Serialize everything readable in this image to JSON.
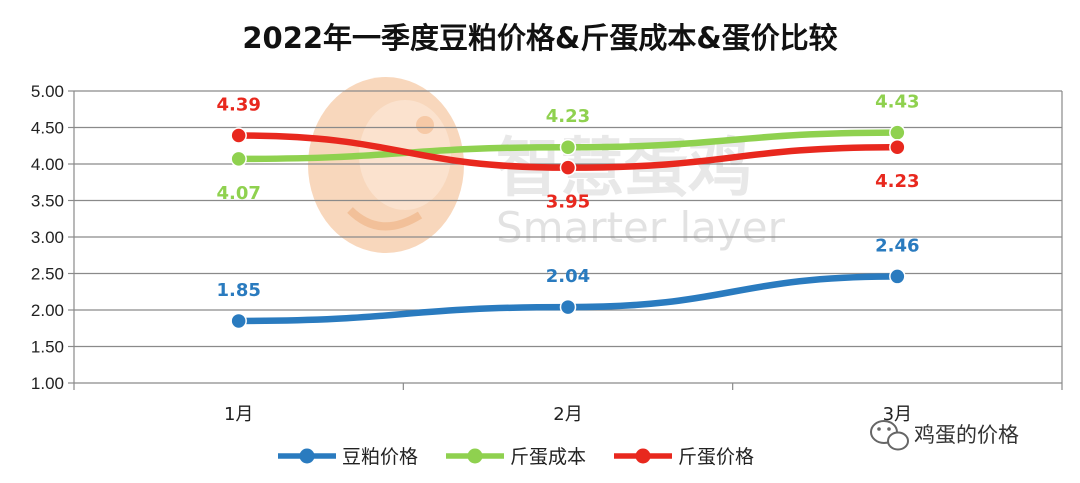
{
  "chart_data": {
    "type": "line",
    "title": "2022年一季度豆粕价格&斤蛋成本&蛋价比较",
    "categories": [
      "1月",
      "2月",
      "3月"
    ],
    "series": [
      {
        "name": "豆粕价格",
        "values": [
          1.85,
          2.04,
          2.46
        ],
        "color": "#2a7bbf",
        "labels": [
          "1.85",
          "2.04",
          "2.46"
        ]
      },
      {
        "name": "斤蛋成本",
        "values": [
          4.07,
          4.23,
          4.43
        ],
        "color": "#8fd14f",
        "labels": [
          "4.07",
          "4.23",
          "4.43"
        ]
      },
      {
        "name": "斤蛋价格",
        "values": [
          4.39,
          3.95,
          4.23
        ],
        "color": "#e8281e",
        "labels": [
          "4.39",
          "3.95",
          "4.23"
        ]
      }
    ],
    "ylim": [
      1.0,
      5.0
    ],
    "yticks": [
      "1.00",
      "1.50",
      "2.00",
      "2.50",
      "3.00",
      "3.50",
      "4.00",
      "4.50",
      "5.00"
    ],
    "grid": true,
    "legend": "bottom",
    "xlabel": "",
    "ylabel": ""
  },
  "watermark": {
    "cn": "智慧蛋鸡",
    "en": "Smarter layer",
    "logo_color": "#f6c9a6"
  },
  "badge": {
    "text": "鸡蛋的价格",
    "icon": "wechat-icon"
  }
}
